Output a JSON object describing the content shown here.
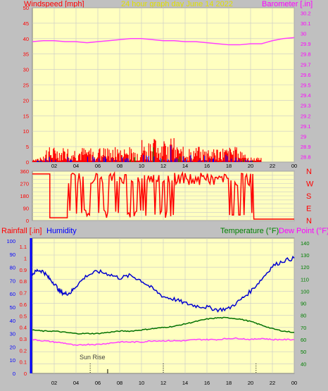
{
  "header": {
    "wind_label": "Windspeed [mph]",
    "title": "24 hour graph day   June 14 2022",
    "baro_label": "Barometer [.in]"
  },
  "lower_header": {
    "rain_label": "Rainfall [.in]",
    "hum_label": "Humidity",
    "temp_label": "Temperature (°F)",
    "dew_label": "Dew Point (°F)"
  },
  "sunrise_label": "Sun Rise",
  "colors": {
    "plot_bg": "#ffffc0",
    "page_bg": "#c0c0c0",
    "grid": "#c8c8c8",
    "wind": "#ff0000",
    "gust": "#0000ff",
    "wind_green": "#008000",
    "barometer": "#ff40ff",
    "direction": "#ff0000",
    "humidity": "#0000d0",
    "temperature": "#007000",
    "dewpoint": "#ff40ff",
    "label_red": "#ff0000",
    "label_yellow": "#e0e000",
    "label_magenta": "#ff00ff",
    "label_blue": "#0000ff",
    "label_green": "#008000",
    "label_pink": "#ff00ff"
  },
  "chart_data": [
    {
      "type": "line",
      "x_ticks": [
        "02",
        "04",
        "06",
        "08",
        "10",
        "12",
        "14",
        "16",
        "18",
        "20",
        "22",
        "00"
      ],
      "ylim_left": [
        0,
        50
      ],
      "left_ticks": [
        0,
        5,
        10,
        15,
        20,
        25,
        30,
        35,
        40,
        45,
        50
      ],
      "ylim_right": [
        28.75,
        30.25
      ],
      "right_ticks": [
        "28.8",
        "28.9",
        "29",
        "29.1",
        "29.2",
        "29.3",
        "29.4",
        "29.5",
        "29.6",
        "29.7",
        "29.8",
        "29.9",
        "30",
        "30.1",
        "30.2"
      ],
      "barometer": {
        "x": [
          0,
          1,
          2,
          3,
          4,
          5,
          6,
          7,
          8,
          9,
          10,
          11,
          12,
          13,
          14,
          15,
          16,
          17,
          18,
          19,
          20,
          21,
          22,
          23,
          24
        ],
        "y": [
          29.92,
          29.93,
          29.93,
          29.92,
          29.92,
          29.91,
          29.92,
          29.93,
          29.94,
          29.95,
          29.95,
          29.94,
          29.93,
          29.93,
          29.92,
          29.92,
          29.91,
          29.9,
          29.89,
          29.89,
          29.9,
          29.9,
          29.93,
          29.95,
          29.96
        ]
      },
      "wind_avg_range_mph": [
        0,
        5
      ],
      "wind_gust_range_mph": [
        0,
        9
      ]
    },
    {
      "type": "line",
      "series_name": "wind direction",
      "ylim": [
        0,
        360
      ],
      "left_ticks": [
        0,
        30,
        60,
        90,
        120,
        150,
        180,
        210,
        240,
        270,
        300,
        330,
        360
      ],
      "compass": [
        "N",
        "W",
        "S",
        "E",
        "N"
      ],
      "x_ticks": [
        "02",
        "04",
        "06",
        "08",
        "10",
        "12",
        "14",
        "16",
        "18",
        "20",
        "22",
        "00"
      ]
    },
    {
      "type": "line",
      "x_ticks": [
        "02",
        "04",
        "06",
        "08",
        "10",
        "12",
        "14",
        "16",
        "18",
        "20",
        "22",
        "00"
      ],
      "rain_ticks": [
        "0",
        "0.1",
        "0.2",
        "0.3",
        "0.4",
        "0.5",
        "0.6",
        "0.7",
        "0.8",
        "0.9",
        "1",
        "1.1"
      ],
      "hum_ticks": [
        0,
        10,
        20,
        30,
        40,
        50,
        60,
        70,
        80,
        90,
        100
      ],
      "temp_ticks": [
        40,
        50,
        60,
        70,
        80,
        90,
        100,
        110,
        120,
        130,
        140
      ],
      "ylim_temp": [
        32,
        144
      ],
      "humidity": {
        "x": [
          0,
          0.5,
          1,
          1.5,
          2,
          2.5,
          3,
          3.5,
          4,
          5,
          6,
          7,
          8,
          9,
          10,
          11,
          12,
          13,
          14,
          15,
          16,
          17,
          18,
          19,
          20,
          21,
          22,
          23,
          24
        ],
        "y": [
          75,
          78,
          77,
          72,
          68,
          62,
          60,
          61,
          66,
          74,
          77,
          75,
          72,
          74,
          70,
          64,
          58,
          56,
          53,
          51,
          50,
          48,
          49,
          55,
          62,
          71,
          81,
          85,
          87
        ]
      },
      "temperature": {
        "x": [
          0,
          1,
          2,
          3,
          4,
          5,
          6,
          7,
          8,
          9,
          10,
          11,
          12,
          13,
          14,
          15,
          16,
          17,
          18,
          19,
          20,
          21,
          22,
          23,
          24
        ],
        "y": [
          68,
          67,
          67,
          66,
          65,
          65,
          65,
          66,
          67,
          67,
          68,
          69,
          70,
          71,
          73,
          75,
          77,
          78,
          78,
          77,
          75,
          72,
          69,
          67,
          66
        ]
      },
      "dewpoint": {
        "x": [
          0,
          1,
          2,
          3,
          4,
          5,
          6,
          7,
          8,
          9,
          10,
          11,
          12,
          13,
          14,
          15,
          16,
          17,
          18,
          19,
          20,
          21,
          22,
          23,
          24
        ],
        "y": [
          60,
          59,
          58,
          57,
          55,
          56,
          56,
          57,
          58,
          58,
          58,
          59,
          59,
          59,
          59,
          60,
          60,
          60,
          61,
          61,
          60,
          61,
          60,
          60,
          60
        ]
      },
      "sunrise_hour": 5.3
    }
  ]
}
